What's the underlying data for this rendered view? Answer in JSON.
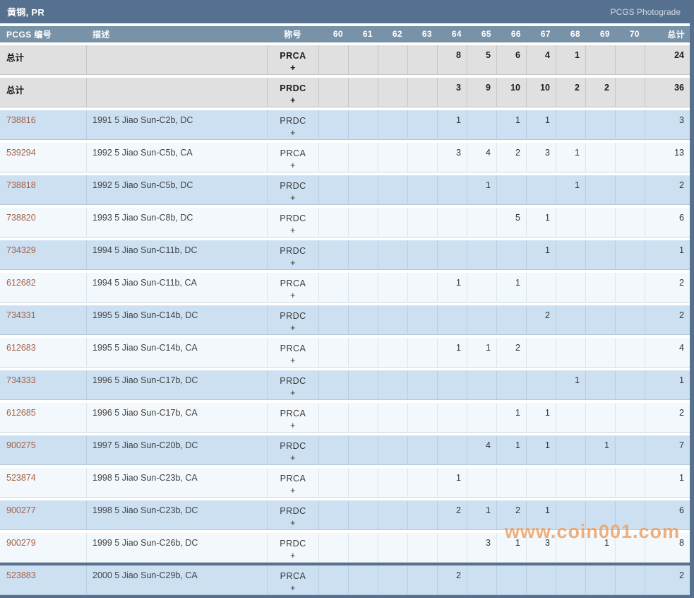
{
  "header": {
    "title": "黄铜, PR",
    "photograde_label": "PCGS Photograde"
  },
  "table": {
    "headers": {
      "pcgs": "PCGS 编号",
      "desc": "描述",
      "designation": "称号",
      "grades": [
        "60",
        "61",
        "62",
        "63",
        "64",
        "65",
        "66",
        "67",
        "68",
        "69",
        "70"
      ],
      "total": "总计"
    },
    "rows": [
      {
        "pcgs": "总计",
        "desc": "",
        "designation": "PRCA",
        "plus": "+",
        "style": "summary",
        "link": false,
        "grades": [
          "",
          "",
          "",
          "",
          "8",
          "5",
          "6",
          "4",
          "1",
          "",
          ""
        ],
        "total": "24"
      },
      {
        "pcgs": "总计",
        "desc": "",
        "designation": "PRDC",
        "plus": "+",
        "style": "summary",
        "link": false,
        "grades": [
          "",
          "",
          "",
          "",
          "3",
          "9",
          "10",
          "10",
          "2",
          "2",
          ""
        ],
        "total": "36"
      },
      {
        "pcgs": "738816",
        "desc": "1991 5 Jiao Sun-C2b, DC",
        "designation": "PRDC",
        "plus": "+",
        "style": "blue",
        "link": true,
        "grades": [
          "",
          "",
          "",
          "",
          "1",
          "",
          "1",
          "1",
          "",
          "",
          ""
        ],
        "total": "3"
      },
      {
        "pcgs": "539294",
        "desc": "1992 5 Jiao Sun-C5b, CA",
        "designation": "PRCA",
        "plus": "+",
        "style": "white",
        "link": true,
        "grades": [
          "",
          "",
          "",
          "",
          "3",
          "4",
          "2",
          "3",
          "1",
          "",
          ""
        ],
        "total": "13"
      },
      {
        "pcgs": "738818",
        "desc": "1992 5 Jiao Sun-C5b, DC",
        "designation": "PRDC",
        "plus": "+",
        "style": "blue",
        "link": true,
        "grades": [
          "",
          "",
          "",
          "",
          "",
          "1",
          "",
          "",
          "1",
          "",
          ""
        ],
        "total": "2"
      },
      {
        "pcgs": "738820",
        "desc": "1993 5 Jiao Sun-C8b, DC",
        "designation": "PRDC",
        "plus": "+",
        "style": "white",
        "link": true,
        "grades": [
          "",
          "",
          "",
          "",
          "",
          "",
          "5",
          "1",
          "",
          "",
          ""
        ],
        "total": "6"
      },
      {
        "pcgs": "734329",
        "desc": "1994 5 Jiao Sun-C11b, DC",
        "designation": "PRDC",
        "plus": "+",
        "style": "blue",
        "link": true,
        "grades": [
          "",
          "",
          "",
          "",
          "",
          "",
          "",
          "1",
          "",
          "",
          ""
        ],
        "total": "1"
      },
      {
        "pcgs": "612682",
        "desc": "1994 5 Jiao Sun-C11b, CA",
        "designation": "PRCA",
        "plus": "+",
        "style": "white",
        "link": true,
        "grades": [
          "",
          "",
          "",
          "",
          "1",
          "",
          "1",
          "",
          "",
          "",
          ""
        ],
        "total": "2"
      },
      {
        "pcgs": "734331",
        "desc": "1995 5 Jiao Sun-C14b, DC",
        "designation": "PRDC",
        "plus": "+",
        "style": "blue",
        "link": true,
        "grades": [
          "",
          "",
          "",
          "",
          "",
          "",
          "",
          "2",
          "",
          "",
          ""
        ],
        "total": "2"
      },
      {
        "pcgs": "612683",
        "desc": "1995 5 Jiao Sun-C14b, CA",
        "designation": "PRCA",
        "plus": "+",
        "style": "white",
        "link": true,
        "grades": [
          "",
          "",
          "",
          "",
          "1",
          "1",
          "2",
          "",
          "",
          "",
          ""
        ],
        "total": "4"
      },
      {
        "pcgs": "734333",
        "desc": "1996 5 Jiao Sun-C17b, DC",
        "designation": "PRDC",
        "plus": "+",
        "style": "blue",
        "link": true,
        "grades": [
          "",
          "",
          "",
          "",
          "",
          "",
          "",
          "",
          "1",
          "",
          ""
        ],
        "total": "1"
      },
      {
        "pcgs": "612685",
        "desc": "1996 5 Jiao Sun-C17b, CA",
        "designation": "PRCA",
        "plus": "+",
        "style": "white",
        "link": true,
        "grades": [
          "",
          "",
          "",
          "",
          "",
          "",
          "1",
          "1",
          "",
          "",
          ""
        ],
        "total": "2"
      },
      {
        "pcgs": "900275",
        "desc": "1997 5 Jiao Sun-C20b, DC",
        "designation": "PRDC",
        "plus": "+",
        "style": "blue",
        "link": true,
        "grades": [
          "",
          "",
          "",
          "",
          "",
          "4",
          "1",
          "1",
          "",
          "1",
          ""
        ],
        "total": "7"
      },
      {
        "pcgs": "523874",
        "desc": "1998 5 Jiao Sun-C23b, CA",
        "designation": "PRCA",
        "plus": "+",
        "style": "white",
        "link": true,
        "grades": [
          "",
          "",
          "",
          "",
          "1",
          "",
          "",
          "",
          "",
          "",
          ""
        ],
        "total": "1"
      },
      {
        "pcgs": "900277",
        "desc": "1998 5 Jiao Sun-C23b, DC",
        "designation": "PRDC",
        "plus": "+",
        "style": "blue",
        "link": true,
        "grades": [
          "",
          "",
          "",
          "",
          "2",
          "1",
          "2",
          "1",
          "",
          "",
          ""
        ],
        "total": "6"
      },
      {
        "pcgs": "900279",
        "desc": "1999 5 Jiao Sun-C26b, DC",
        "designation": "PRDC",
        "plus": "+",
        "style": "white",
        "link": true,
        "grades": [
          "",
          "",
          "",
          "",
          "",
          "3",
          "1",
          "3",
          "",
          "1",
          ""
        ],
        "total": "8"
      },
      {
        "pcgs": "523883",
        "desc": "2000 5 Jiao Sun-C29b, CA",
        "designation": "PRCA",
        "plus": "+",
        "style": "blue",
        "link": true,
        "grades": [
          "",
          "",
          "",
          "",
          "2",
          "",
          "",
          "",
          "",
          "",
          ""
        ],
        "total": "2"
      }
    ]
  },
  "watermark": "www.coin001.com",
  "colors": {
    "title_bar": "#56718f",
    "header_row": "#7892a8",
    "summary_row": "#e0e0e1",
    "row_blue": "#cce0f2",
    "row_white": "#f2f8fc",
    "pcgs_link": "#a55f45",
    "watermark": "#ec9f62"
  }
}
